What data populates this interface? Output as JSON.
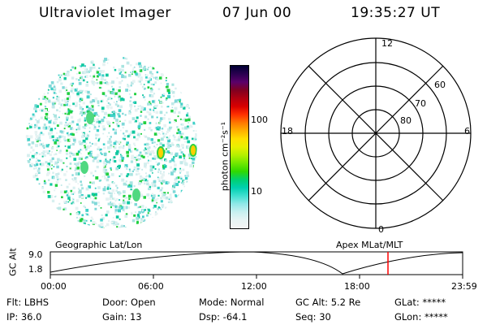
{
  "header": {
    "title": "Ultraviolet Imager",
    "date": "07 Jun 00",
    "time": "19:35:27 UT"
  },
  "colorbar": {
    "label": "photon cm⁻²s⁻¹",
    "ticks": [
      "100",
      "10"
    ],
    "scale": "log",
    "colors": [
      "#000033",
      "#2a0050",
      "#5a006a",
      "#800020",
      "#b00010",
      "#d80000",
      "#ff3000",
      "#ff7800",
      "#ffb000",
      "#ffe000",
      "#e8f000",
      "#b4f000",
      "#70e800",
      "#30d800",
      "#00d070",
      "#00d0b0",
      "#40e0d0",
      "#90e8e8",
      "#c8f0f0",
      "#e8f4f4",
      "#f4f4f4"
    ]
  },
  "polar_grid": {
    "labels": [
      "12",
      "18",
      "6",
      "0"
    ],
    "ring_labels": [
      "60",
      "70",
      "80"
    ]
  },
  "timeline": {
    "left_label": "Geographic Lat/Lon",
    "right_label": "Apex MLat/MLT",
    "y_axis_label": "GC Alt",
    "y_ticks": [
      "9.0",
      "1.8"
    ],
    "x_ticks": [
      "00:00",
      "06:00",
      "12:00",
      "18:00",
      "23:59"
    ],
    "current_time_marker": "19:35",
    "marker_color": "#ff0000"
  },
  "info": {
    "col1": [
      "Flt: LBHS",
      "IP: 36.0"
    ],
    "col2": [
      "Door: Open",
      "Gain: 13"
    ],
    "col3": [
      "Mode: Normal",
      "Dsp:  -64.1"
    ],
    "col4": [
      "GC Alt: 5.2 Re",
      "Seq: 30"
    ],
    "col5": [
      "GLat: *****",
      "GLon: *****"
    ]
  }
}
